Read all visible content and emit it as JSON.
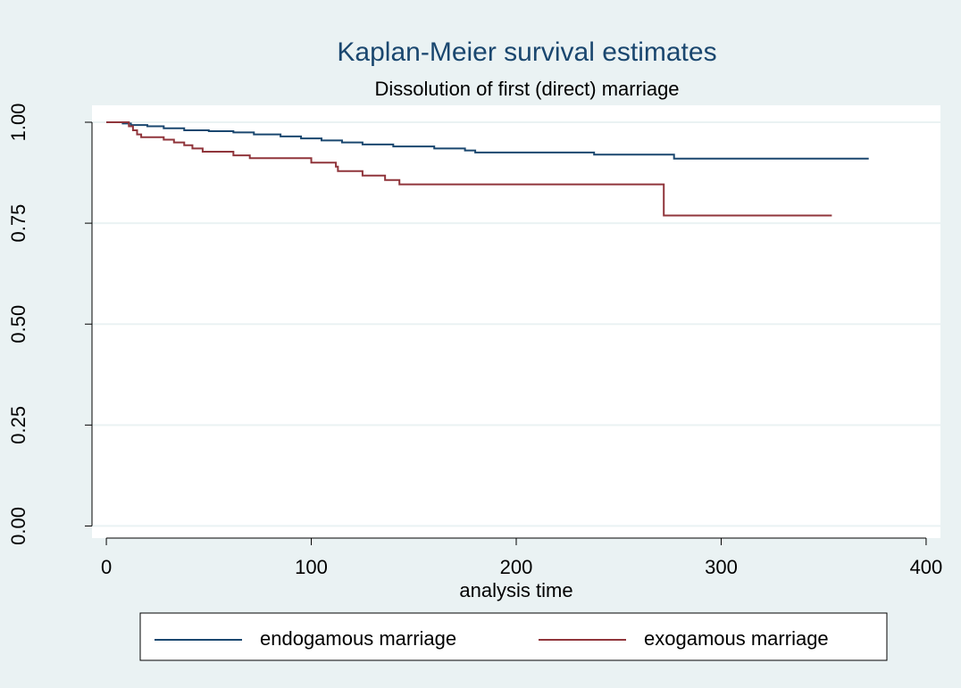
{
  "chart_data": {
    "type": "step",
    "title": "Kaplan-Meier survival estimates",
    "subtitle": "Dissolution of first (direct) marriage",
    "x_label": "analysis time",
    "xlim": [
      -7,
      407
    ],
    "ylim": [
      -0.03,
      1.042
    ],
    "xticks": [
      0,
      100,
      200,
      300,
      400
    ],
    "yticks": [
      {
        "value": 0,
        "label": "0.00"
      },
      {
        "value": 0.25,
        "label": "0.25"
      },
      {
        "value": 0.5,
        "label": "0.50"
      },
      {
        "value": 0.75,
        "label": "0.75"
      },
      {
        "value": 1,
        "label": "1.00"
      }
    ],
    "grid": true,
    "series": [
      {
        "name": "endogamous marriage",
        "color": "#1a476f",
        "x": [
          0,
          8,
          12,
          20,
          28,
          38,
          50,
          62,
          72,
          85,
          95,
          105,
          115,
          125,
          140,
          160,
          175,
          180,
          238,
          277,
          372
        ],
        "values": [
          1,
          0.997,
          0.993,
          0.99,
          0.985,
          0.98,
          0.978,
          0.975,
          0.97,
          0.965,
          0.96,
          0.955,
          0.95,
          0.945,
          0.94,
          0.935,
          0.93,
          0.925,
          0.92,
          0.91,
          0.91
        ]
      },
      {
        "name": "exogamous marriage",
        "color": "#90353b",
        "x": [
          0,
          11,
          13,
          15,
          17,
          28,
          33,
          38,
          42,
          47,
          62,
          70,
          100,
          112,
          113,
          125,
          136,
          143,
          272,
          354
        ],
        "values": [
          1,
          0.99,
          0.98,
          0.97,
          0.963,
          0.957,
          0.95,
          0.943,
          0.935,
          0.927,
          0.918,
          0.911,
          0.9,
          0.89,
          0.879,
          0.868,
          0.857,
          0.846,
          0.769,
          0.769
        ]
      }
    ]
  }
}
